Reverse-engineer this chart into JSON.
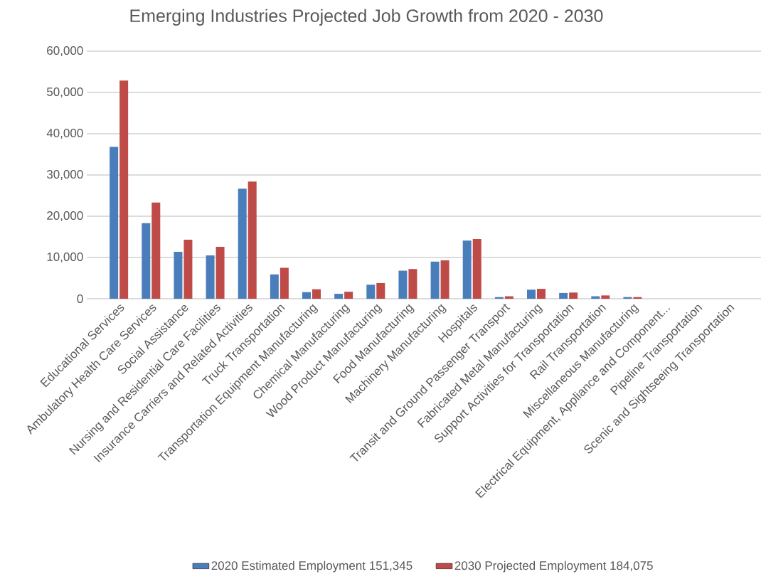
{
  "chart_data": {
    "type": "bar",
    "title": "Emerging Industries Projected Job Growth from 2020 - 2030",
    "categories": [
      "Educational Services",
      "Ambulatory Health Care Services",
      "Social Assistance",
      "Nursing and Residential Care Facilities",
      "Insurance Carriers and Related Activities",
      "Truck Transportation",
      "Transportation Equipment Manufacturing",
      "Chemical Manufacturing",
      "Wood Product Manufacturing",
      "Food Manufacturing",
      "Machinery Manufacturing",
      "Hospitals",
      "Transit and Ground Passenger Transport",
      "Fabricated Metal Manufacturing",
      "Support Activities for Transportation",
      "Rail Transportation",
      "Miscellaneous Manufacturing",
      "Electrical Equipment, Appliance and Component...",
      "Pipeline Transportation",
      "Scenic and Sightseeing Transportation"
    ],
    "series": [
      {
        "name": "2020 Estimated Employment 151,345",
        "color": "#4a7ebb",
        "values": [
          36800,
          18300,
          11400,
          10500,
          26700,
          5900,
          1600,
          1200,
          3400,
          6800,
          9000,
          14100,
          400,
          2200,
          1400,
          600,
          400,
          0,
          0,
          0
        ]
      },
      {
        "name": "2030 Projected Employment 184,075",
        "color": "#be4b48",
        "values": [
          52900,
          23300,
          14300,
          12600,
          28400,
          7500,
          2300,
          1700,
          3800,
          7200,
          9300,
          14500,
          600,
          2400,
          1500,
          800,
          400,
          0,
          0,
          0
        ]
      }
    ],
    "ylim": [
      0,
      60000
    ],
    "yticks": [
      {
        "value": 0,
        "label": "0"
      },
      {
        "value": 10000,
        "label": "10,000"
      },
      {
        "value": 20000,
        "label": "20,000"
      },
      {
        "value": 30000,
        "label": "30,000"
      },
      {
        "value": 40000,
        "label": "40,000"
      },
      {
        "value": 50000,
        "label": "50,000"
      },
      {
        "value": 60000,
        "label": "60,000"
      }
    ],
    "grid": "y",
    "legend": "bottom"
  }
}
